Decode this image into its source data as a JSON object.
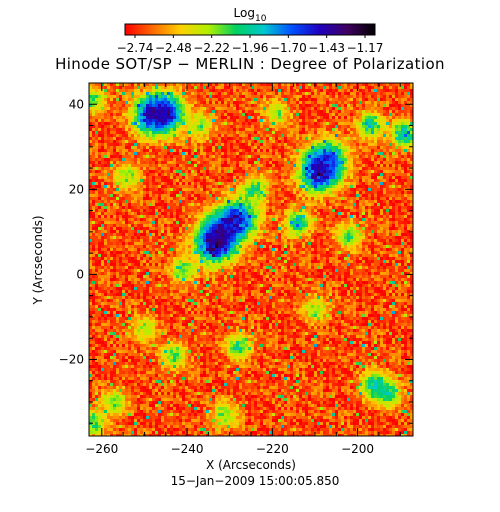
{
  "colorbar": {
    "label": "Log",
    "label_subscript": "10",
    "tick_labels": [
      "−2.74",
      "−2.48",
      "−2.22",
      "−1.96",
      "−1.70",
      "−1.43",
      "−1.17"
    ],
    "colors": [
      "#ff0000",
      "#ff6a00",
      "#ffd000",
      "#b0f000",
      "#00d060",
      "#00c8d0",
      "#0050ff",
      "#2000c0",
      "#400060",
      "#000000"
    ]
  },
  "chart_data": {
    "type": "heatmap",
    "title": "Hinode SOT/SP − MERLIN : Degree of Polarization",
    "xlabel": "X (Arcseconds)",
    "ylabel": "Y (Arcseconds)",
    "xlim": [
      -263,
      -187
    ],
    "ylim": [
      -38,
      45
    ],
    "x_ticks": [
      -260,
      -240,
      -220,
      -200
    ],
    "x_tick_labels": [
      "−260",
      "−240",
      "−220",
      "−200"
    ],
    "y_ticks": [
      -20,
      0,
      20,
      40
    ],
    "y_tick_labels": [
      "−20",
      "0",
      "20",
      "40"
    ],
    "value_range": [
      -2.74,
      -1.17
    ],
    "value_scale": "log10",
    "background_level": -2.72,
    "patches": [
      {
        "x": -248,
        "y": 37.5,
        "level": -1.35
      },
      {
        "x": -245,
        "y": 38,
        "level": -1.45
      },
      {
        "x": -233.5,
        "y": 7,
        "level": -1.25
      },
      {
        "x": -232,
        "y": 10,
        "level": -1.4
      },
      {
        "x": -228,
        "y": 13,
        "level": -1.4
      },
      {
        "x": -209,
        "y": 24,
        "level": -1.25
      },
      {
        "x": -207,
        "y": 27,
        "level": -1.55
      },
      {
        "x": -224,
        "y": 20,
        "level": -1.9
      },
      {
        "x": -214,
        "y": 12,
        "level": -1.8
      },
      {
        "x": -189,
        "y": 33,
        "level": -1.75
      },
      {
        "x": -197,
        "y": 35,
        "level": -1.85
      },
      {
        "x": -241,
        "y": 1,
        "level": -2.0
      },
      {
        "x": -196,
        "y": -26,
        "level": -1.8
      },
      {
        "x": -193,
        "y": -28,
        "level": -1.9
      },
      {
        "x": -237,
        "y": 35,
        "level": -2.1
      },
      {
        "x": -219,
        "y": 38,
        "level": -2.15
      },
      {
        "x": -254,
        "y": 23,
        "level": -2.1
      },
      {
        "x": -250,
        "y": -13,
        "level": -2.15
      },
      {
        "x": -243,
        "y": -19,
        "level": -2.05
      },
      {
        "x": -228,
        "y": -17,
        "level": -2.0
      },
      {
        "x": -210,
        "y": -8,
        "level": -2.15
      },
      {
        "x": -257,
        "y": -30,
        "level": -2.1
      },
      {
        "x": -202,
        "y": 9,
        "level": -2.05
      },
      {
        "x": -262,
        "y": -35,
        "level": -2.0
      },
      {
        "x": -231,
        "y": -33,
        "level": -2.1
      },
      {
        "x": -262,
        "y": 41,
        "level": -2.05
      }
    ],
    "date": "15−Jan−2009 15:00:05.850"
  }
}
